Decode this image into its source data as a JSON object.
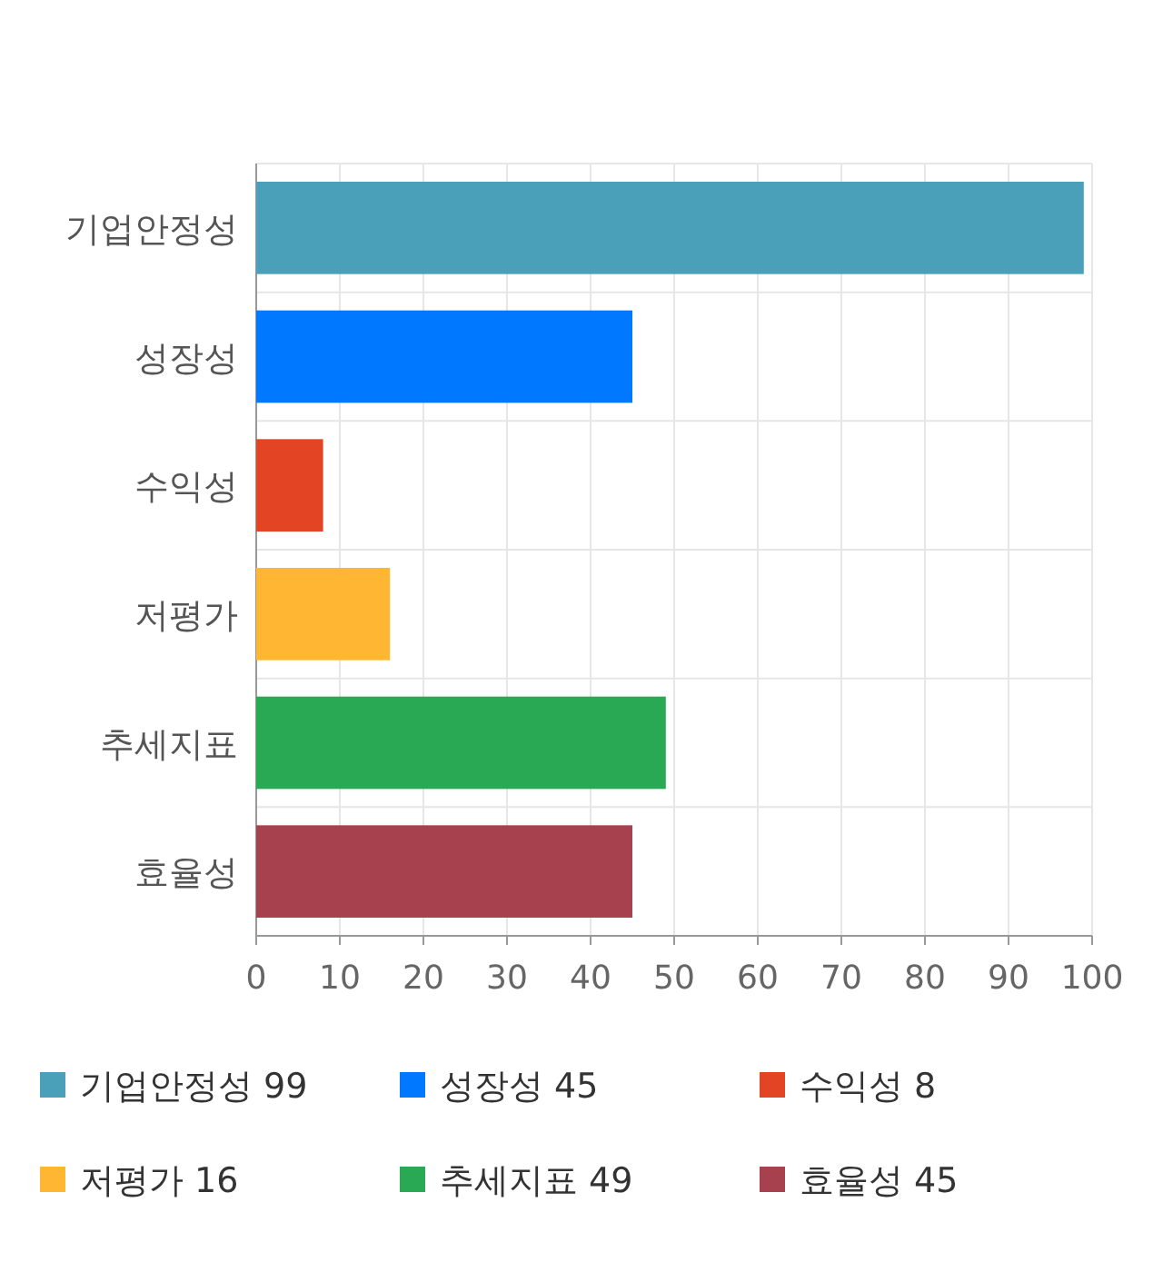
{
  "chart_data": {
    "type": "bar",
    "orientation": "horizontal",
    "categories": [
      "기업안정성",
      "성장성",
      "수익성",
      "저평가",
      "추세지표",
      "효율성"
    ],
    "series": [
      {
        "name": "기업안정성 99",
        "color": "#4aa0b9",
        "values": [
          99,
          null,
          null,
          null,
          null,
          null
        ]
      },
      {
        "name": "성장성 45",
        "color": "#0078ff",
        "values": [
          null,
          45,
          null,
          null,
          null,
          null
        ]
      },
      {
        "name": "수익성 8",
        "color": "#e34423",
        "values": [
          null,
          null,
          8,
          null,
          null,
          null
        ]
      },
      {
        "name": "저평가 16",
        "color": "#ffb632",
        "values": [
          null,
          null,
          null,
          16,
          null,
          null
        ]
      },
      {
        "name": "추세지표 49",
        "color": "#2aa955",
        "values": [
          null,
          null,
          null,
          null,
          49,
          null
        ]
      },
      {
        "name": "효율성 45",
        "color": "#a8414e",
        "values": [
          null,
          null,
          null,
          null,
          null,
          45
        ]
      }
    ],
    "xlim": [
      0,
      100
    ],
    "xticks": [
      0,
      10,
      20,
      30,
      40,
      50,
      60,
      70,
      80,
      90,
      100
    ],
    "grid": true,
    "legend": "bottom"
  }
}
